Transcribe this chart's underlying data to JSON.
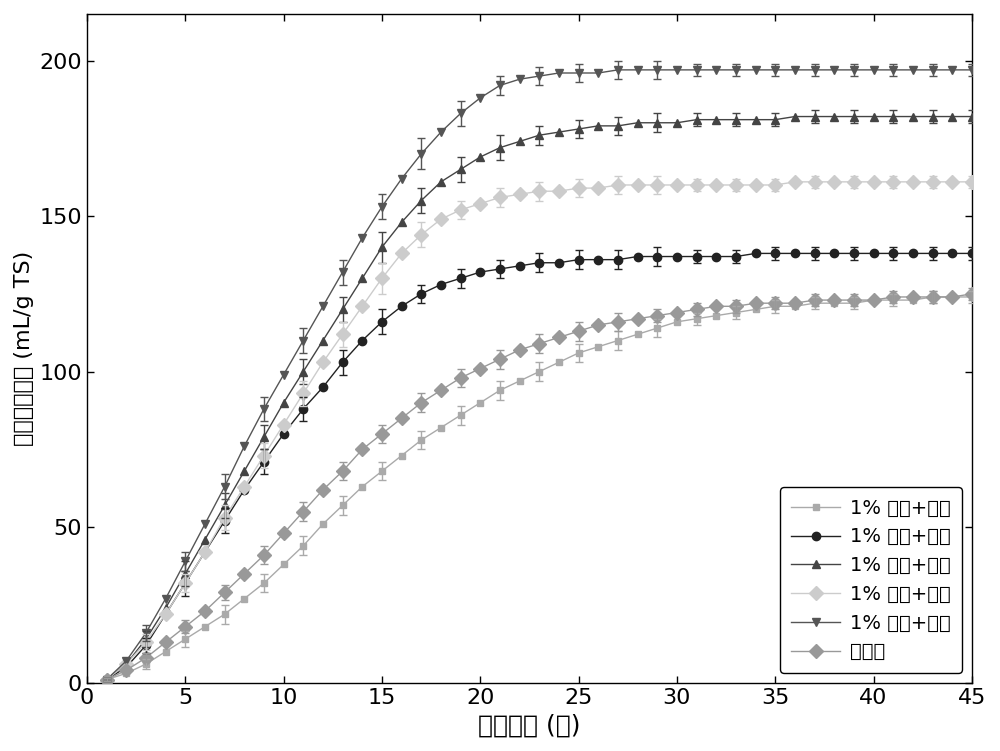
{
  "title": "",
  "xlabel": "发酵时间 (天)",
  "ylabel": "累积甲烷产量 (mL/g TS)",
  "xlim": [
    0,
    45
  ],
  "ylim": [
    0,
    215
  ],
  "xticks": [
    0,
    5,
    10,
    15,
    20,
    25,
    30,
    35,
    40,
    45
  ],
  "yticks": [
    0,
    50,
    100,
    150,
    200
  ],
  "series": [
    {
      "label": "1% 硫酸+盘磨",
      "color": "#aaaaaa",
      "marker": "s",
      "markersize": 5,
      "linewidth": 1.0,
      "x": [
        1,
        2,
        3,
        4,
        5,
        6,
        7,
        8,
        9,
        10,
        11,
        12,
        13,
        14,
        15,
        16,
        17,
        18,
        19,
        20,
        21,
        22,
        23,
        24,
        25,
        26,
        27,
        28,
        29,
        30,
        31,
        32,
        33,
        34,
        35,
        36,
        37,
        38,
        39,
        40,
        41,
        42,
        43,
        44,
        45
      ],
      "y": [
        1,
        3,
        6,
        10,
        14,
        18,
        22,
        27,
        32,
        38,
        44,
        51,
        57,
        63,
        68,
        73,
        78,
        82,
        86,
        90,
        94,
        97,
        100,
        103,
        106,
        108,
        110,
        112,
        114,
        116,
        117,
        118,
        119,
        120,
        121,
        121,
        122,
        122,
        122,
        123,
        123,
        123,
        124,
        124,
        124
      ],
      "yerr": [
        0.5,
        1,
        1.5,
        2,
        2.5,
        2.5,
        3,
        3,
        3,
        3,
        3,
        3,
        3,
        3,
        3,
        3,
        3,
        3,
        3,
        3,
        3,
        3,
        3,
        3,
        3,
        3,
        3,
        3,
        3,
        2,
        2,
        2,
        2,
        2,
        2,
        2,
        2,
        2,
        2,
        2,
        2,
        2,
        2,
        2,
        2
      ]
    },
    {
      "label": "1% 磷酸+盘磨",
      "color": "#222222",
      "marker": "o",
      "markersize": 6,
      "linewidth": 1.0,
      "x": [
        1,
        2,
        3,
        4,
        5,
        6,
        7,
        8,
        9,
        10,
        11,
        12,
        13,
        14,
        15,
        16,
        17,
        18,
        19,
        20,
        21,
        22,
        23,
        24,
        25,
        26,
        27,
        28,
        29,
        30,
        31,
        32,
        33,
        34,
        35,
        36,
        37,
        38,
        39,
        40,
        41,
        42,
        43,
        44,
        45
      ],
      "y": [
        1,
        5,
        12,
        22,
        32,
        42,
        52,
        62,
        71,
        80,
        88,
        95,
        103,
        110,
        116,
        121,
        125,
        128,
        130,
        132,
        133,
        134,
        135,
        135,
        136,
        136,
        136,
        137,
        137,
        137,
        137,
        137,
        137,
        138,
        138,
        138,
        138,
        138,
        138,
        138,
        138,
        138,
        138,
        138,
        138
      ],
      "yerr": [
        0.5,
        1.5,
        2.5,
        3,
        4,
        4,
        4,
        4,
        4,
        4,
        4,
        4,
        4,
        4,
        4,
        3,
        3,
        3,
        3,
        3,
        3,
        3,
        3,
        3,
        3,
        3,
        3,
        3,
        3,
        2,
        2,
        2,
        2,
        2,
        2,
        2,
        2,
        2,
        2,
        2,
        2,
        2,
        2,
        2,
        2
      ]
    },
    {
      "label": "1% 丙酸+盘磨",
      "color": "#444444",
      "marker": "^",
      "markersize": 6,
      "linewidth": 1.0,
      "x": [
        1,
        2,
        3,
        4,
        5,
        6,
        7,
        8,
        9,
        10,
        11,
        12,
        13,
        14,
        15,
        16,
        17,
        18,
        19,
        20,
        21,
        22,
        23,
        24,
        25,
        26,
        27,
        28,
        29,
        30,
        31,
        32,
        33,
        34,
        35,
        36,
        37,
        38,
        39,
        40,
        41,
        42,
        43,
        44,
        45
      ],
      "y": [
        1,
        6,
        14,
        24,
        35,
        46,
        57,
        68,
        79,
        90,
        100,
        110,
        120,
        130,
        140,
        148,
        155,
        161,
        165,
        169,
        172,
        174,
        176,
        177,
        178,
        179,
        179,
        180,
        180,
        180,
        181,
        181,
        181,
        181,
        181,
        182,
        182,
        182,
        182,
        182,
        182,
        182,
        182,
        182,
        182
      ],
      "yerr": [
        0.5,
        1.5,
        2.5,
        3,
        4,
        4,
        4,
        4,
        4,
        4,
        4,
        4,
        4,
        5,
        5,
        5,
        4,
        4,
        4,
        4,
        4,
        3,
        3,
        3,
        3,
        3,
        3,
        3,
        3,
        2,
        2,
        2,
        2,
        2,
        2,
        2,
        2,
        2,
        2,
        2,
        2,
        2,
        2,
        2,
        2
      ]
    },
    {
      "label": "1% 丁酸+盘磨",
      "color": "#cccccc",
      "marker": "D",
      "markersize": 7,
      "linewidth": 1.0,
      "x": [
        1,
        2,
        3,
        4,
        5,
        6,
        7,
        8,
        9,
        10,
        11,
        12,
        13,
        14,
        15,
        16,
        17,
        18,
        19,
        20,
        21,
        22,
        23,
        24,
        25,
        26,
        27,
        28,
        29,
        30,
        31,
        32,
        33,
        34,
        35,
        36,
        37,
        38,
        39,
        40,
        41,
        42,
        43,
        44,
        45
      ],
      "y": [
        1,
        6,
        13,
        22,
        32,
        42,
        53,
        63,
        73,
        83,
        93,
        103,
        112,
        121,
        130,
        138,
        144,
        149,
        152,
        154,
        156,
        157,
        158,
        158,
        159,
        159,
        160,
        160,
        160,
        160,
        160,
        160,
        160,
        160,
        160,
        161,
        161,
        161,
        161,
        161,
        161,
        161,
        161,
        161,
        161
      ],
      "yerr": [
        0.5,
        1.5,
        2.5,
        3,
        3,
        3,
        4,
        4,
        4,
        4,
        4,
        4,
        4,
        4,
        5,
        5,
        4,
        4,
        3,
        3,
        3,
        3,
        3,
        3,
        3,
        3,
        3,
        3,
        3,
        2,
        2,
        2,
        2,
        2,
        2,
        2,
        2,
        2,
        2,
        2,
        2,
        2,
        2,
        2,
        2
      ]
    },
    {
      "label": "1% 乙酸+盘磨",
      "color": "#555555",
      "marker": "v",
      "markersize": 6,
      "linewidth": 1.0,
      "x": [
        1,
        2,
        3,
        4,
        5,
        6,
        7,
        8,
        9,
        10,
        11,
        12,
        13,
        14,
        15,
        16,
        17,
        18,
        19,
        20,
        21,
        22,
        23,
        24,
        25,
        26,
        27,
        28,
        29,
        30,
        31,
        32,
        33,
        34,
        35,
        36,
        37,
        38,
        39,
        40,
        41,
        42,
        43,
        44,
        45
      ],
      "y": [
        1,
        7,
        16,
        27,
        39,
        51,
        63,
        76,
        88,
        99,
        110,
        121,
        132,
        143,
        153,
        162,
        170,
        177,
        183,
        188,
        192,
        194,
        195,
        196,
        196,
        196,
        197,
        197,
        197,
        197,
        197,
        197,
        197,
        197,
        197,
        197,
        197,
        197,
        197,
        197,
        197,
        197,
        197,
        197,
        197
      ],
      "yerr": [
        0.5,
        1.5,
        2.5,
        3,
        3,
        3,
        4,
        4,
        4,
        4,
        4,
        4,
        4,
        4,
        4,
        4,
        5,
        4,
        4,
        4,
        3,
        3,
        3,
        3,
        3,
        3,
        3,
        3,
        3,
        2,
        2,
        2,
        2,
        2,
        2,
        2,
        2,
        2,
        2,
        2,
        2,
        2,
        2,
        2,
        2
      ]
    },
    {
      "label": "未处理",
      "color": "#999999",
      "marker": "D",
      "markersize": 7,
      "linewidth": 1.0,
      "x": [
        1,
        2,
        3,
        4,
        5,
        6,
        7,
        8,
        9,
        10,
        11,
        12,
        13,
        14,
        15,
        16,
        17,
        18,
        19,
        20,
        21,
        22,
        23,
        24,
        25,
        26,
        27,
        28,
        29,
        30,
        31,
        32,
        33,
        34,
        35,
        36,
        37,
        38,
        39,
        40,
        41,
        42,
        43,
        44,
        45
      ],
      "y": [
        1,
        4,
        8,
        13,
        18,
        23,
        29,
        35,
        41,
        48,
        55,
        62,
        68,
        75,
        80,
        85,
        90,
        94,
        98,
        101,
        104,
        107,
        109,
        111,
        113,
        115,
        116,
        117,
        118,
        119,
        120,
        121,
        121,
        122,
        122,
        122,
        123,
        123,
        123,
        123,
        124,
        124,
        124,
        124,
        125
      ],
      "yerr": [
        0.5,
        1,
        1.5,
        2,
        2,
        2,
        2.5,
        2.5,
        3,
        3,
        3,
        3,
        3,
        3,
        3,
        3,
        3,
        3,
        3,
        3,
        3,
        3,
        3,
        3,
        3,
        3,
        3,
        3,
        2,
        2,
        2,
        2,
        2,
        2,
        2,
        2,
        2,
        2,
        2,
        2,
        2,
        2,
        2,
        2,
        2
      ]
    }
  ],
  "legend_loc": "lower right",
  "xlabel_fontsize": 18,
  "ylabel_fontsize": 16,
  "tick_fontsize": 16,
  "legend_fontsize": 14
}
